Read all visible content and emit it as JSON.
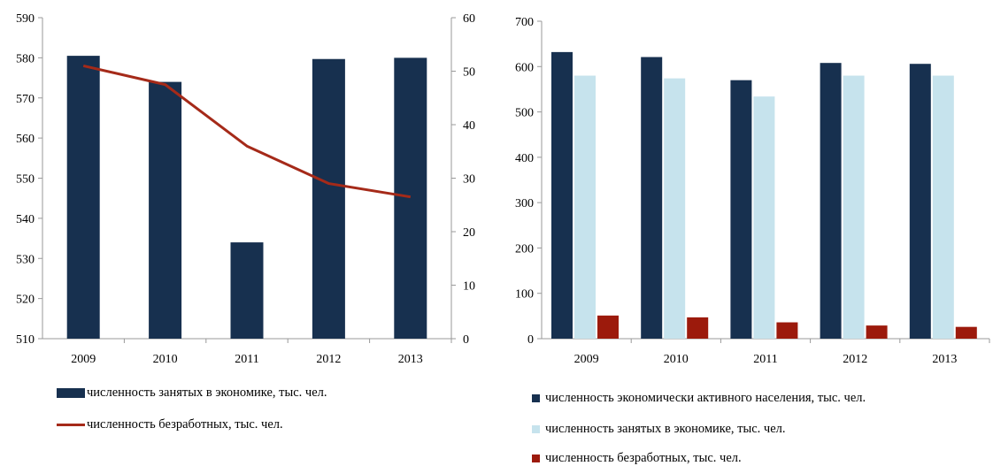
{
  "colors": {
    "navy": "#17304f",
    "lightblue": "#c6e3ed",
    "darkred": "#9c1a0c",
    "line": "#a52a19"
  },
  "chart_data": [
    {
      "type": "bar",
      "categories": [
        "2009",
        "2010",
        "2011",
        "2012",
        "2013"
      ],
      "series": [
        {
          "name": "численность занятых в экономике, тыс. чел.",
          "values": [
            580.5,
            574,
            534,
            579.7,
            580
          ],
          "axis": "left",
          "color": "#17304f"
        },
        {
          "name": "численность безработных, тыс. чел.",
          "values": [
            51,
            47.5,
            36,
            29,
            26.5
          ],
          "axis": "right",
          "type": "line",
          "color": "#a52a19"
        }
      ],
      "ylim_left": [
        510,
        590
      ],
      "yticks_left": [
        "510",
        "520",
        "530",
        "540",
        "550",
        "560",
        "570",
        "580",
        "590"
      ],
      "ylim_right": [
        0,
        60
      ],
      "yticks_right": [
        "0",
        "10",
        "20",
        "30",
        "40",
        "50",
        "60"
      ],
      "legend_placement": "bottom"
    },
    {
      "type": "bar",
      "categories": [
        "2009",
        "2010",
        "2011",
        "2012",
        "2013"
      ],
      "series": [
        {
          "name": "численность экономически активного населения, тыс. чел.",
          "values": [
            632,
            621,
            570,
            608,
            606
          ],
          "color": "#17304f"
        },
        {
          "name": "численность занятых в экономике, тыс. чел.",
          "values": [
            580,
            574,
            534,
            580,
            580
          ],
          "color": "#c6e3ed"
        },
        {
          "name": "численность безработных, тыс. чел.",
          "values": [
            51,
            47,
            36,
            29,
            26
          ],
          "color": "#9c1a0c"
        }
      ],
      "ylim": [
        0,
        700
      ],
      "yticks": [
        "0",
        "100",
        "200",
        "300",
        "400",
        "500",
        "600",
        "700"
      ],
      "legend_placement": "bottom"
    }
  ],
  "legend_left": [
    "численность занятых в экономике, тыс. чел.",
    "численность безработных, тыс. чел."
  ],
  "legend_right": [
    "численность экономически активного населения, тыс. чел.",
    "численность занятых в экономике, тыс. чел.",
    "численность безработных, тыс. чел."
  ]
}
